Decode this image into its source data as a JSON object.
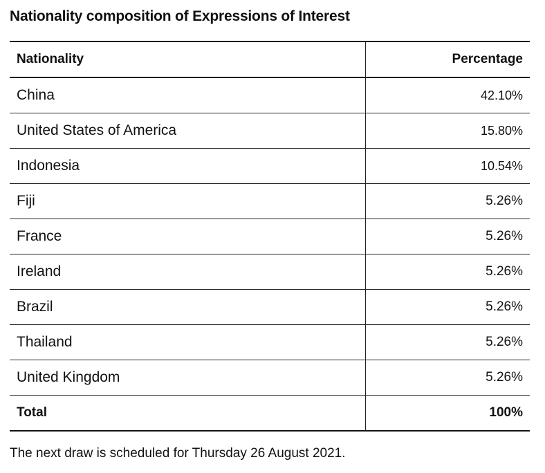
{
  "title": "Nationality composition of Expressions of Interest",
  "table": {
    "headers": {
      "nationality": "Nationality",
      "percentage": "Percentage"
    },
    "rows": [
      {
        "nationality": "China",
        "percentage": "42.10%"
      },
      {
        "nationality": "United States of America",
        "percentage": "15.80%"
      },
      {
        "nationality": "Indonesia",
        "percentage": "10.54%"
      },
      {
        "nationality": "Fiji",
        "percentage": "5.26%"
      },
      {
        "nationality": "France",
        "percentage": "5.26%"
      },
      {
        "nationality": "Ireland",
        "percentage": "5.26%"
      },
      {
        "nationality": "Brazil",
        "percentage": "5.26%"
      },
      {
        "nationality": "Thailand",
        "percentage": "5.26%"
      },
      {
        "nationality": "United Kingdom",
        "percentage": "5.26%"
      }
    ],
    "total": {
      "label": "Total",
      "value": "100%"
    }
  },
  "footnote": "The next draw is scheduled for Thursday 26 August 2021."
}
